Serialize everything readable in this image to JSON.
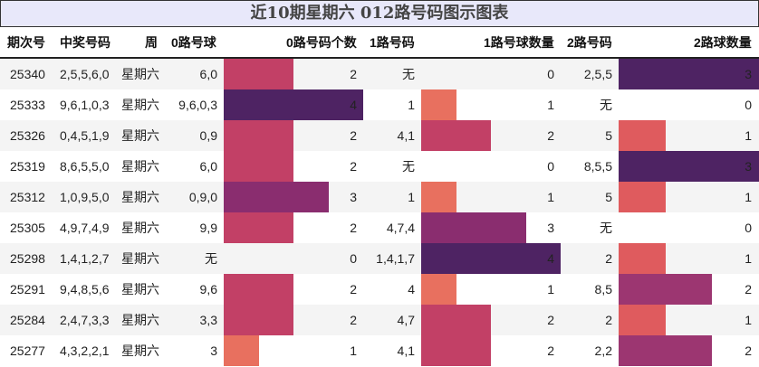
{
  "title": "近10期星期六 012路号码图示图表",
  "headers": {
    "issue": "期次号",
    "numbers": "中奖号码",
    "weekday": "周",
    "road0_balls": "0路号球",
    "road0_count": "0路号码个数",
    "road1_balls": "1路号码",
    "road1_count": "1路号球数量",
    "road2_balls": "2路号码",
    "road2_count": "2路球数量"
  },
  "colors": {
    "count_1": "#e8705f",
    "count_1_road2": "#df5b5e",
    "count_2": "#c24066",
    "count_2_road2": "#9c3671",
    "count_3": "#8a2d6f",
    "count_4": "#4e2363",
    "count_3_road2": "#4e2363",
    "row_alt": "#f4f4f4",
    "title_bg": "#e8e8fa"
  },
  "rows": [
    {
      "issue": "25340",
      "numbers": "2,5,5,6,0",
      "weekday": "星期六",
      "r0": "6,0",
      "c0": "2",
      "r1": "无",
      "c1": "0",
      "r2": "2,5,5",
      "c2": "3"
    },
    {
      "issue": "25333",
      "numbers": "9,6,1,0,3",
      "weekday": "星期六",
      "r0": "9,6,0,3",
      "c0": "4",
      "r1": "1",
      "c1": "1",
      "r2": "无",
      "c2": "0"
    },
    {
      "issue": "25326",
      "numbers": "0,4,5,1,9",
      "weekday": "星期六",
      "r0": "0,9",
      "c0": "2",
      "r1": "4,1",
      "c1": "2",
      "r2": "5",
      "c2": "1"
    },
    {
      "issue": "25319",
      "numbers": "8,6,5,5,0",
      "weekday": "星期六",
      "r0": "6,0",
      "c0": "2",
      "r1": "无",
      "c1": "0",
      "r2": "8,5,5",
      "c2": "3"
    },
    {
      "issue": "25312",
      "numbers": "1,0,9,5,0",
      "weekday": "星期六",
      "r0": "0,9,0",
      "c0": "3",
      "r1": "1",
      "c1": "1",
      "r2": "5",
      "c2": "1"
    },
    {
      "issue": "25305",
      "numbers": "4,9,7,4,9",
      "weekday": "星期六",
      "r0": "9,9",
      "c0": "2",
      "r1": "4,7,4",
      "c1": "3",
      "r2": "无",
      "c2": "0"
    },
    {
      "issue": "25298",
      "numbers": "1,4,1,2,7",
      "weekday": "星期六",
      "r0": "无",
      "c0": "0",
      "r1": "1,4,1,7",
      "c1": "4",
      "r2": "2",
      "c2": "1"
    },
    {
      "issue": "25291",
      "numbers": "9,4,8,5,6",
      "weekday": "星期六",
      "r0": "9,6",
      "c0": "2",
      "r1": "4",
      "c1": "1",
      "r2": "8,5",
      "c2": "2"
    },
    {
      "issue": "25284",
      "numbers": "2,4,7,3,3",
      "weekday": "星期六",
      "r0": "3,3",
      "c0": "2",
      "r1": "4,7",
      "c1": "2",
      "r2": "2",
      "c2": "1"
    },
    {
      "issue": "25277",
      "numbers": "4,3,2,2,1",
      "weekday": "星期六",
      "r0": "3",
      "c0": "1",
      "r1": "4,1",
      "c1": "2",
      "r2": "2,2",
      "c2": "2"
    }
  ],
  "chart_data": {
    "type": "table",
    "title": "近10期星期六 012路号码图示图表",
    "columns": [
      "期次号",
      "中奖号码",
      "周",
      "0路号球",
      "0路号码个数",
      "1路号码",
      "1路号球数量",
      "2路号码",
      "2路球数量"
    ],
    "categories": [
      "25340",
      "25333",
      "25326",
      "25319",
      "25312",
      "25305",
      "25298",
      "25291",
      "25284",
      "25277"
    ],
    "series": [
      {
        "name": "0路号码个数",
        "values": [
          2,
          4,
          2,
          2,
          3,
          2,
          0,
          2,
          2,
          1
        ]
      },
      {
        "name": "1路号球数量",
        "values": [
          0,
          1,
          2,
          0,
          1,
          3,
          4,
          1,
          2,
          2
        ]
      },
      {
        "name": "2路球数量",
        "values": [
          3,
          0,
          1,
          3,
          1,
          0,
          1,
          2,
          1,
          2
        ]
      }
    ],
    "bar_max": {
      "road0": 4,
      "road1": 4,
      "road2": 3
    },
    "grid": false,
    "legend": "none"
  }
}
